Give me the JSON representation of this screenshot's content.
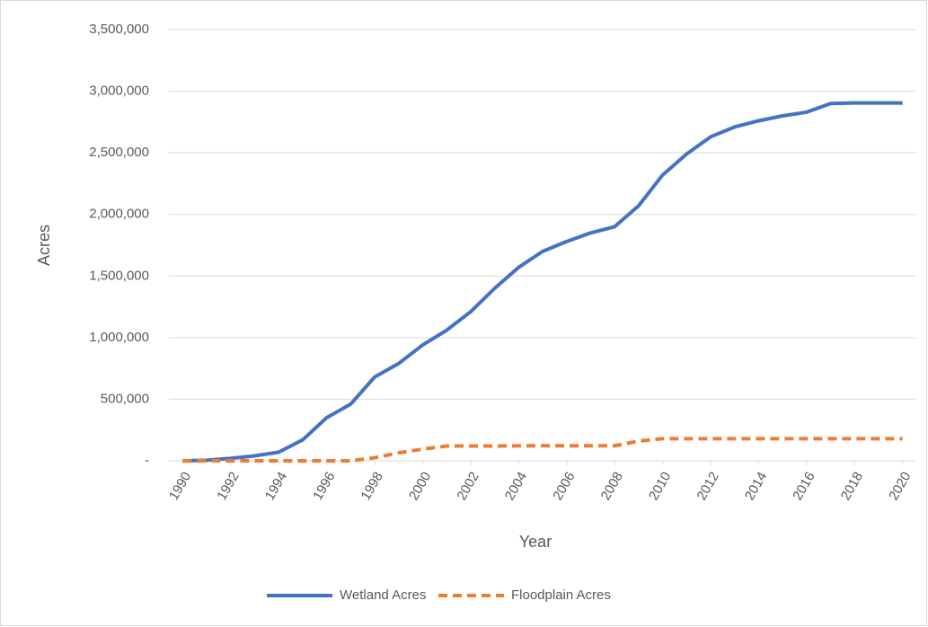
{
  "chart_data": {
    "type": "line",
    "x_label": "Year",
    "y_label": "Acres",
    "x": [
      1990,
      1991,
      1992,
      1993,
      1994,
      1995,
      1996,
      1997,
      1998,
      1999,
      2000,
      2001,
      2002,
      2003,
      2004,
      2005,
      2006,
      2007,
      2008,
      2009,
      2010,
      2011,
      2012,
      2013,
      2014,
      2015,
      2016,
      2017,
      2018,
      2019,
      2020
    ],
    "series": [
      {
        "name": "Wetland Acres",
        "color": "#4472c4",
        "dash": false,
        "values": [
          0,
          5000,
          20000,
          40000,
          70000,
          170000,
          350000,
          460000,
          680000,
          790000,
          940000,
          1060000,
          1210000,
          1400000,
          1570000,
          1700000,
          1780000,
          1850000,
          1900000,
          2070000,
          2320000,
          2490000,
          2630000,
          2710000,
          2760000,
          2800000,
          2830000,
          2900000,
          2905000,
          2905000,
          2905000
        ]
      },
      {
        "name": "Floodplain Acres",
        "color": "#ed7d31",
        "dash": true,
        "values": [
          0,
          0,
          0,
          0,
          0,
          0,
          0,
          0,
          25000,
          65000,
          95000,
          120000,
          120000,
          120000,
          122000,
          122000,
          122000,
          122000,
          122000,
          160000,
          180000,
          180000,
          180000,
          180000,
          180000,
          180000,
          180000,
          180000,
          180000,
          180000,
          180000
        ]
      }
    ],
    "xlim": [
      1989.5,
      2020.5
    ],
    "xticks": [
      1990,
      1992,
      1994,
      1996,
      1998,
      2000,
      2002,
      2004,
      2006,
      2008,
      2010,
      2012,
      2014,
      2016,
      2018,
      2020
    ],
    "ylim": [
      0,
      3500000
    ],
    "yticks": [
      {
        "value": 0,
        "label": "-"
      },
      {
        "value": 500000,
        "label": "500,000"
      },
      {
        "value": 1000000,
        "label": "1,000,000"
      },
      {
        "value": 1500000,
        "label": "1,500,000"
      },
      {
        "value": 2000000,
        "label": "2,000,000"
      },
      {
        "value": 2500000,
        "label": "2,500,000"
      },
      {
        "value": 3000000,
        "label": "3,000,000"
      },
      {
        "value": 3500000,
        "label": "3,500,000"
      }
    ],
    "grid": true,
    "legend": "bottom"
  }
}
